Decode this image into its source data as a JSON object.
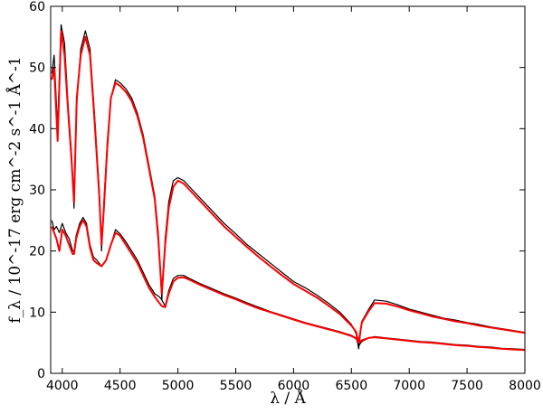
{
  "chart_data": {
    "type": "line",
    "xlabel": "λ / Å",
    "ylabel": "f_λ / 10^-17 erg cm^-2 s^-1 Å^-1",
    "xlim": [
      3900,
      8000
    ],
    "ylim": [
      0,
      60
    ],
    "xticks": [
      "4000",
      "4500",
      "5000",
      "5500",
      "6000",
      "6500",
      "7000",
      "7500",
      "8000"
    ],
    "yticks": [
      "0",
      "10",
      "20",
      "30",
      "40",
      "50",
      "60"
    ],
    "grid": false,
    "colors": {
      "observed": "#000000",
      "model": "#ff0000"
    },
    "series": [
      {
        "role": "observed",
        "x": [
          3910,
          3930,
          3960,
          3990,
          4020,
          4050,
          4080,
          4102,
          4125,
          4160,
          4200,
          4240,
          4280,
          4320,
          4340,
          4360,
          4390,
          4420,
          4460,
          4500,
          4550,
          4600,
          4650,
          4700,
          4750,
          4800,
          4830,
          4861,
          4890,
          4920,
          4960,
          5000,
          5050,
          5100,
          5200,
          5300,
          5400,
          5500,
          5600,
          5700,
          5800,
          5900,
          6000,
          6100,
          6200,
          6300,
          6400,
          6500,
          6540,
          6563,
          6590,
          6650,
          6700,
          6800,
          6900,
          7000,
          7100,
          7200,
          7300,
          7400,
          7500,
          7600,
          7700,
          7800,
          7900,
          8000
        ],
        "y": [
          49,
          52,
          40,
          57,
          54,
          44,
          36,
          27,
          44,
          53,
          56,
          53,
          42,
          30,
          20,
          28,
          38,
          45,
          48,
          47.5,
          46.5,
          45,
          42.5,
          39,
          34,
          29,
          23,
          12,
          22,
          28,
          31.5,
          32,
          31.5,
          30.5,
          28.5,
          26.5,
          24.5,
          22.8,
          21,
          19.5,
          18,
          16.5,
          15,
          14,
          12.8,
          11.5,
          10,
          8,
          6.5,
          4,
          8.5,
          10.5,
          12,
          11.8,
          11.2,
          10.5,
          10,
          9.5,
          9,
          8.7,
          8.3,
          8,
          7.6,
          7.3,
          7,
          6.7
        ]
      },
      {
        "role": "model",
        "x": [
          3910,
          3930,
          3960,
          3990,
          4020,
          4050,
          4080,
          4102,
          4125,
          4160,
          4200,
          4240,
          4280,
          4320,
          4340,
          4360,
          4390,
          4420,
          4460,
          4500,
          4550,
          4600,
          4650,
          4700,
          4750,
          4800,
          4830,
          4861,
          4890,
          4920,
          4960,
          5000,
          5050,
          5100,
          5200,
          5300,
          5400,
          5500,
          5600,
          5700,
          5800,
          5900,
          6000,
          6100,
          6200,
          6300,
          6400,
          6500,
          6540,
          6563,
          6590,
          6650,
          6700,
          6800,
          6900,
          7000,
          7100,
          7200,
          7300,
          7400,
          7500,
          7600,
          7700,
          7800,
          7900,
          8000
        ],
        "y": [
          48,
          50,
          38,
          56,
          52,
          43,
          35,
          28,
          45,
          52,
          55,
          52,
          41,
          29,
          21,
          27,
          37,
          45,
          47.5,
          47,
          46,
          44.5,
          42,
          38.5,
          33.5,
          28.5,
          22,
          13,
          21,
          27,
          30.5,
          31.5,
          31,
          30,
          28,
          26,
          24,
          22.3,
          20.6,
          19,
          17.5,
          16,
          14.6,
          13.5,
          12.4,
          11.1,
          9.7,
          7.8,
          6.8,
          5,
          8.3,
          10.2,
          11.5,
          11.4,
          10.9,
          10.3,
          9.8,
          9.3,
          8.9,
          8.5,
          8.2,
          7.8,
          7.5,
          7.2,
          6.9,
          6.6
        ]
      },
      {
        "role": "observed",
        "x": [
          3910,
          3930,
          3950,
          3975,
          4000,
          4030,
          4060,
          4090,
          4102,
          4120,
          4150,
          4180,
          4210,
          4240,
          4270,
          4300,
          4340,
          4380,
          4420,
          4460,
          4500,
          4550,
          4600,
          4650,
          4700,
          4750,
          4800,
          4840,
          4861,
          4890,
          4920,
          4960,
          5000,
          5050,
          5100,
          5200,
          5300,
          5400,
          5500,
          5600,
          5700,
          5800,
          5900,
          6000,
          6100,
          6200,
          6300,
          6400,
          6500,
          6540,
          6563,
          6590,
          6650,
          6700,
          6800,
          6900,
          7000,
          7100,
          7200,
          7300,
          7400,
          7500,
          7600,
          7700,
          7800,
          7900,
          8000
        ],
        "y": [
          25,
          23.5,
          24,
          23,
          24.5,
          23,
          22,
          20,
          20,
          22.5,
          24.5,
          25.5,
          24.5,
          21,
          19,
          18.5,
          17.5,
          18.5,
          21,
          23.5,
          22.8,
          21.5,
          20,
          18.5,
          16.5,
          14.5,
          13,
          12.5,
          12,
          11,
          13.5,
          15.5,
          16,
          16,
          15.5,
          14.6,
          13.8,
          13,
          12.3,
          11.5,
          10.8,
          10.1,
          9.5,
          8.9,
          8.3,
          7.8,
          7.3,
          6.8,
          6.2,
          5.8,
          4.5,
          5.2,
          5.8,
          6,
          5.8,
          5.6,
          5.4,
          5.2,
          5.1,
          4.9,
          4.7,
          4.6,
          4.4,
          4.3,
          4.1,
          4,
          3.9
        ]
      },
      {
        "role": "model",
        "x": [
          3910,
          3930,
          3950,
          3975,
          4000,
          4030,
          4060,
          4090,
          4102,
          4120,
          4150,
          4180,
          4210,
          4240,
          4270,
          4300,
          4340,
          4380,
          4420,
          4460,
          4500,
          4550,
          4600,
          4650,
          4700,
          4750,
          4800,
          4840,
          4861,
          4890,
          4920,
          4960,
          5000,
          5050,
          5100,
          5200,
          5300,
          5400,
          5500,
          5600,
          5700,
          5800,
          5900,
          6000,
          6100,
          6200,
          6300,
          6400,
          6500,
          6540,
          6563,
          6590,
          6650,
          6700,
          6800,
          6900,
          7000,
          7100,
          7200,
          7300,
          7400,
          7500,
          7600,
          7700,
          7800,
          7900,
          8000
        ],
        "y": [
          24,
          23,
          22,
          20,
          23.5,
          22.5,
          21,
          19.5,
          19.5,
          22,
          24,
          25,
          24,
          20.5,
          18.5,
          18,
          17.5,
          18.5,
          21,
          23,
          22.5,
          21,
          19.5,
          18,
          16,
          14,
          12.5,
          11.5,
          11,
          10.8,
          13,
          15,
          15.6,
          15.7,
          15.3,
          14.4,
          13.6,
          12.8,
          12.1,
          11.3,
          10.6,
          10,
          9.4,
          8.8,
          8.2,
          7.7,
          7.2,
          6.7,
          6.1,
          5.7,
          5,
          5.4,
          5.8,
          5.9,
          5.7,
          5.5,
          5.3,
          5.1,
          5,
          4.8,
          4.6,
          4.5,
          4.3,
          4.2,
          4,
          3.9,
          3.8
        ]
      }
    ]
  }
}
